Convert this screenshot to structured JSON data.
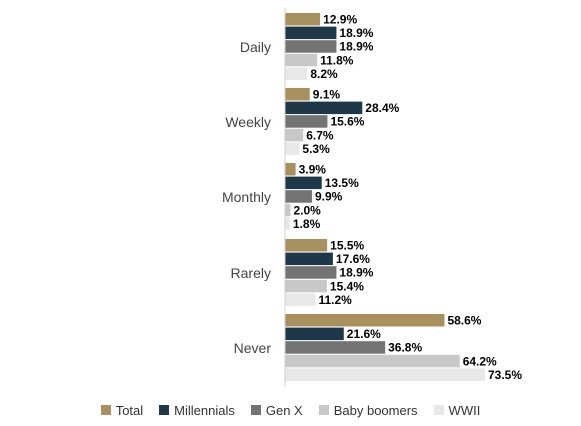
{
  "chart_data": {
    "type": "bar",
    "orientation": "horizontal",
    "categories": [
      "Daily",
      "Weekly",
      "Monthly",
      "Rarely",
      "Never"
    ],
    "series": [
      {
        "name": "Total",
        "color": "#a8915e",
        "values": [
          12.9,
          9.1,
          3.9,
          15.5,
          58.6
        ],
        "labels": [
          "12.9%",
          "9.1%",
          "3.9%",
          "15.5%",
          "58.6%"
        ]
      },
      {
        "name": "Millennials",
        "color": "#1f3849",
        "values": [
          18.9,
          28.4,
          13.5,
          17.6,
          21.6
        ],
        "labels": [
          "18.9%",
          "28.4%",
          "13.5%",
          "17.6%",
          "21.6%"
        ]
      },
      {
        "name": "Gen X",
        "color": "#737373",
        "values": [
          18.9,
          15.6,
          9.9,
          18.9,
          36.8
        ],
        "labels": [
          "18.9%",
          "15.6%",
          "9.9%",
          "18.9%",
          "36.8%"
        ]
      },
      {
        "name": "Baby boomers",
        "color": "#c8c8c8",
        "values": [
          11.8,
          6.7,
          2.0,
          15.4,
          64.2
        ],
        "labels": [
          "11.8%",
          "6.7%",
          "2.0%",
          "15.4%",
          "64.2%"
        ]
      },
      {
        "name": "WWII",
        "color": "#e8e8e8",
        "values": [
          8.2,
          5.3,
          1.8,
          11.2,
          73.5
        ],
        "labels": [
          "8.2%",
          "5.3%",
          "1.8%",
          "11.2%",
          "73.5%"
        ]
      }
    ],
    "xlim": [
      0,
      73.5
    ],
    "grid": false,
    "legend_position": "bottom"
  }
}
